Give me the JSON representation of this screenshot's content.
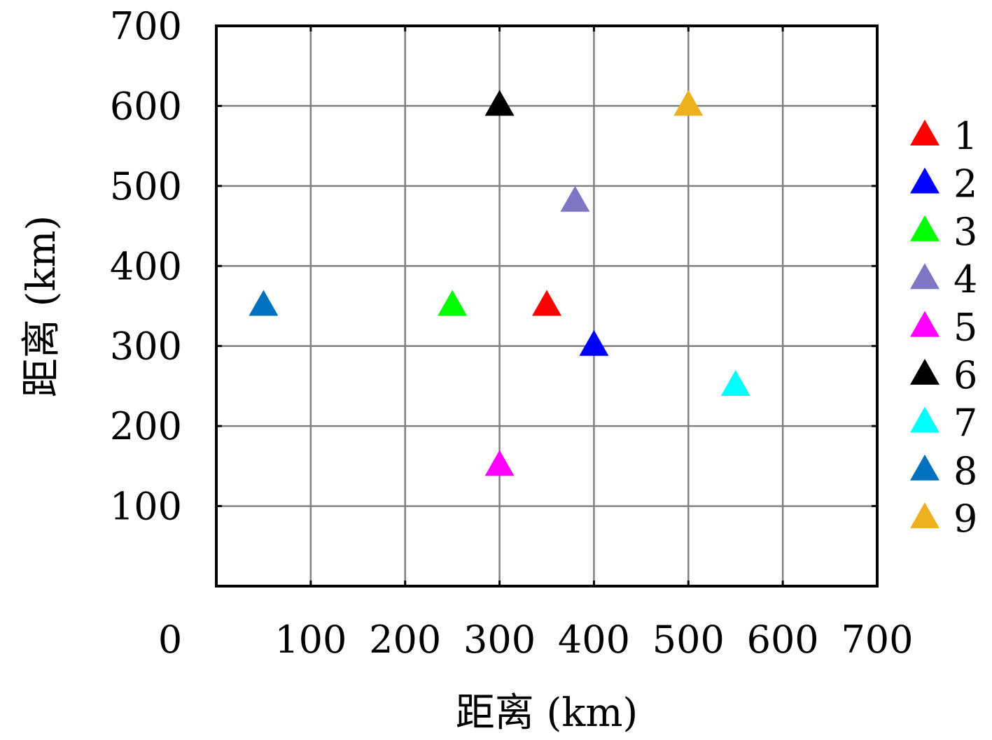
{
  "chart_data": {
    "type": "scatter",
    "marker": "triangle-up",
    "xlabel": "距离 (km)",
    "ylabel": "距离 (km)",
    "xlim": [
      0,
      700
    ],
    "ylim": [
      0,
      700
    ],
    "x_ticks": [
      0,
      100,
      200,
      300,
      400,
      500,
      600,
      700
    ],
    "y_ticks": [
      100,
      200,
      300,
      400,
      500,
      600,
      700
    ],
    "grid": true,
    "legend_position": "right",
    "series": [
      {
        "name": "1",
        "color": "#ff0000",
        "x": 350,
        "y": 350
      },
      {
        "name": "2",
        "color": "#0000ff",
        "x": 400,
        "y": 300
      },
      {
        "name": "3",
        "color": "#00ff00",
        "x": 250,
        "y": 350
      },
      {
        "name": "4",
        "color": "#7e76c2",
        "x": 380,
        "y": 480
      },
      {
        "name": "5",
        "color": "#ff00ff",
        "x": 300,
        "y": 150
      },
      {
        "name": "6",
        "color": "#000000",
        "x": 300,
        "y": 600
      },
      {
        "name": "7",
        "color": "#00ffff",
        "x": 550,
        "y": 250
      },
      {
        "name": "8",
        "color": "#0072bd",
        "x": 50,
        "y": 350
      },
      {
        "name": "9",
        "color": "#edb120",
        "x": 500,
        "y": 600
      }
    ]
  }
}
